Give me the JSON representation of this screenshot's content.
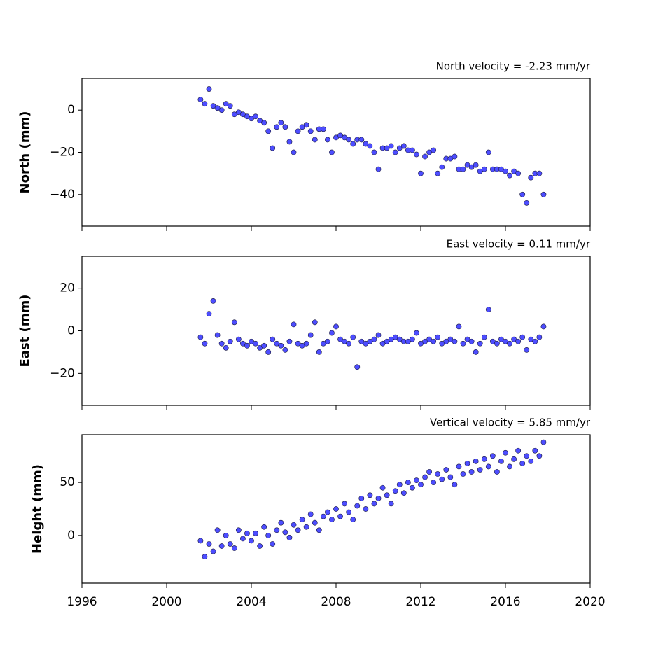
{
  "chart_data": [
    {
      "type": "scatter",
      "title": "North velocity = -2.23 mm/yr",
      "y_label": "North (mm)",
      "color": "#4d4dff",
      "edgecolor": "#1a1a40",
      "x": [
        2001.6,
        2001.8,
        2002.0,
        2002.2,
        2002.4,
        2002.6,
        2002.8,
        2003.0,
        2003.2,
        2003.4,
        2003.6,
        2003.8,
        2004.0,
        2004.2,
        2004.4,
        2004.6,
        2004.8,
        2005.0,
        2005.2,
        2005.4,
        2005.6,
        2005.8,
        2006.0,
        2006.2,
        2006.4,
        2006.6,
        2006.8,
        2007.0,
        2007.2,
        2007.4,
        2007.6,
        2007.8,
        2008.0,
        2008.2,
        2008.4,
        2008.6,
        2008.8,
        2009.0,
        2009.2,
        2009.4,
        2009.6,
        2009.8,
        2010.0,
        2010.2,
        2010.4,
        2010.6,
        2010.8,
        2011.0,
        2011.2,
        2011.4,
        2011.6,
        2011.8,
        2012.0,
        2012.2,
        2012.4,
        2012.6,
        2012.8,
        2013.0,
        2013.2,
        2013.4,
        2013.6,
        2013.8,
        2014.0,
        2014.2,
        2014.4,
        2014.6,
        2014.8,
        2015.0,
        2015.2,
        2015.4,
        2015.6,
        2015.8,
        2016.0,
        2016.2,
        2016.4,
        2016.6,
        2016.8,
        2017.0,
        2017.2,
        2017.4,
        2017.6,
        2017.8
      ],
      "values": [
        5,
        3,
        10,
        2,
        1,
        0,
        3,
        2,
        -2,
        -1,
        -2,
        -3,
        -4,
        -3,
        -5,
        -6,
        -10,
        -18,
        -8,
        -6,
        -8,
        -15,
        -20,
        -10,
        -8,
        -7,
        -10,
        -14,
        -9,
        -9,
        -14,
        -20,
        -13,
        -12,
        -13,
        -14,
        -16,
        -14,
        -14,
        -16,
        -17,
        -20,
        -28,
        -18,
        -18,
        -17,
        -20,
        -18,
        -17,
        -19,
        -19,
        -21,
        -30,
        -22,
        -20,
        -19,
        -30,
        -27,
        -23,
        -23,
        -22,
        -28,
        -28,
        -26,
        -27,
        -26,
        -29,
        -28,
        -20,
        -28,
        -28,
        -28,
        -29,
        -31,
        -29,
        -30,
        -40,
        -44,
        -32,
        -30,
        -30,
        -40
      ],
      "xlim": [
        1996,
        2020
      ],
      "xticks": [
        1996,
        2000,
        2004,
        2008,
        2012,
        2016,
        2020
      ],
      "ylim": [
        -55,
        15
      ],
      "yticks": [
        {
          "value": -40,
          "label": "−40"
        },
        {
          "value": -20,
          "label": "−20"
        },
        0
      ]
    },
    {
      "type": "scatter",
      "title": "East velocity = 0.11 mm/yr",
      "y_label": "East (mm)",
      "color": "#4d4dff",
      "edgecolor": "#1a1a40",
      "x": [
        2001.6,
        2001.8,
        2002.0,
        2002.2,
        2002.4,
        2002.6,
        2002.8,
        2003.0,
        2003.2,
        2003.4,
        2003.6,
        2003.8,
        2004.0,
        2004.2,
        2004.4,
        2004.6,
        2004.8,
        2005.0,
        2005.2,
        2005.4,
        2005.6,
        2005.8,
        2006.0,
        2006.2,
        2006.4,
        2006.6,
        2006.8,
        2007.0,
        2007.2,
        2007.4,
        2007.6,
        2007.8,
        2008.0,
        2008.2,
        2008.4,
        2008.6,
        2008.8,
        2009.0,
        2009.2,
        2009.4,
        2009.6,
        2009.8,
        2010.0,
        2010.2,
        2010.4,
        2010.6,
        2010.8,
        2011.0,
        2011.2,
        2011.4,
        2011.6,
        2011.8,
        2012.0,
        2012.2,
        2012.4,
        2012.6,
        2012.8,
        2013.0,
        2013.2,
        2013.4,
        2013.6,
        2013.8,
        2014.0,
        2014.2,
        2014.4,
        2014.6,
        2014.8,
        2015.0,
        2015.2,
        2015.4,
        2015.6,
        2015.8,
        2016.0,
        2016.2,
        2016.4,
        2016.6,
        2016.8,
        2017.0,
        2017.2,
        2017.4,
        2017.6,
        2017.8
      ],
      "values": [
        -3,
        -6,
        8,
        14,
        -2,
        -6,
        -8,
        -5,
        4,
        -4,
        -6,
        -7,
        -5,
        -6,
        -8,
        -7,
        -10,
        -4,
        -6,
        -7,
        -9,
        -5,
        3,
        -6,
        -7,
        -6,
        -2,
        4,
        -10,
        -6,
        -5,
        -1,
        2,
        -4,
        -5,
        -6,
        -3,
        -17,
        -5,
        -6,
        -5,
        -4,
        -2,
        -6,
        -5,
        -4,
        -3,
        -4,
        -5,
        -5,
        -4,
        -1,
        -6,
        -5,
        -4,
        -5,
        -3,
        -6,
        -5,
        -4,
        -5,
        2,
        -6,
        -4,
        -5,
        -10,
        -6,
        -3,
        10,
        -5,
        -6,
        -4,
        -5,
        -6,
        -4,
        -5,
        -3,
        -9,
        -4,
        -5,
        -3,
        2
      ],
      "xlim": [
        1996,
        2020
      ],
      "xticks": [
        1996,
        2000,
        2004,
        2008,
        2012,
        2016,
        2020
      ],
      "ylim": [
        -35,
        35
      ],
      "yticks": [
        {
          "value": -20,
          "label": "−20"
        },
        0,
        20
      ]
    },
    {
      "type": "scatter",
      "title": "Vertical velocity = 5.85 mm/yr",
      "y_label": "Height (mm)",
      "color": "#4d4dff",
      "edgecolor": "#1a1a40",
      "x": [
        2001.6,
        2001.8,
        2002.0,
        2002.2,
        2002.4,
        2002.6,
        2002.8,
        2003.0,
        2003.2,
        2003.4,
        2003.6,
        2003.8,
        2004.0,
        2004.2,
        2004.4,
        2004.6,
        2004.8,
        2005.0,
        2005.2,
        2005.4,
        2005.6,
        2005.8,
        2006.0,
        2006.2,
        2006.4,
        2006.6,
        2006.8,
        2007.0,
        2007.2,
        2007.4,
        2007.6,
        2007.8,
        2008.0,
        2008.2,
        2008.4,
        2008.6,
        2008.8,
        2009.0,
        2009.2,
        2009.4,
        2009.6,
        2009.8,
        2010.0,
        2010.2,
        2010.4,
        2010.6,
        2010.8,
        2011.0,
        2011.2,
        2011.4,
        2011.6,
        2011.8,
        2012.0,
        2012.2,
        2012.4,
        2012.6,
        2012.8,
        2013.0,
        2013.2,
        2013.4,
        2013.6,
        2013.8,
        2014.0,
        2014.2,
        2014.4,
        2014.6,
        2014.8,
        2015.0,
        2015.2,
        2015.4,
        2015.6,
        2015.8,
        2016.0,
        2016.2,
        2016.4,
        2016.6,
        2016.8,
        2017.0,
        2017.2,
        2017.4,
        2017.6,
        2017.8
      ],
      "values": [
        -5,
        -20,
        -8,
        -15,
        5,
        -10,
        0,
        -8,
        -12,
        5,
        -3,
        2,
        -5,
        2,
        -10,
        8,
        0,
        -8,
        5,
        12,
        3,
        -2,
        10,
        5,
        15,
        8,
        20,
        12,
        5,
        18,
        22,
        15,
        25,
        18,
        30,
        22,
        15,
        28,
        35,
        25,
        38,
        30,
        35,
        45,
        38,
        30,
        42,
        48,
        40,
        50,
        45,
        52,
        48,
        55,
        60,
        50,
        58,
        53,
        62,
        55,
        48,
        65,
        58,
        68,
        60,
        70,
        62,
        72,
        65,
        75,
        60,
        70,
        78,
        65,
        72,
        80,
        68,
        75,
        70,
        80,
        75,
        88
      ],
      "xlim": [
        1996,
        2020
      ],
      "xticks": [
        1996,
        2000,
        2004,
        2008,
        2012,
        2016,
        2020
      ],
      "ylim": [
        -45,
        95
      ],
      "yticks": [
        0,
        50
      ]
    }
  ]
}
